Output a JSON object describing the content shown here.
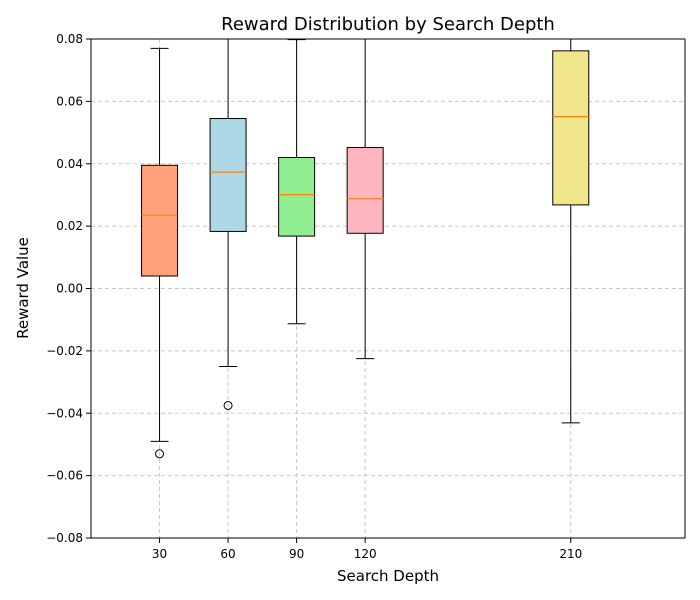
{
  "chart_data": {
    "type": "box",
    "title": "Reward Distribution by Search Depth",
    "xlabel": "Search Depth",
    "ylabel": "Reward Value",
    "x_ticks": [
      30,
      60,
      90,
      120,
      210
    ],
    "xlim": [
      0,
      260
    ],
    "ylim": [
      -0.08,
      0.08
    ],
    "y_ticks": [
      -0.08,
      -0.06,
      -0.04,
      -0.02,
      0.0,
      0.02,
      0.04,
      0.06,
      0.08
    ],
    "y_tick_labels": [
      "−0.08",
      "−0.06",
      "−0.04",
      "−0.02",
      "0.00",
      "0.02",
      "0.04",
      "0.06",
      "0.08"
    ],
    "grid": true,
    "median_color": "#ff7f0e",
    "boxes": [
      {
        "x": 30,
        "whisker_low": -0.049,
        "q1": 0.004,
        "median": 0.0235,
        "q3": 0.0395,
        "whisker_high": 0.077,
        "outliers": [
          -0.053
        ],
        "color": "#ffa07a"
      },
      {
        "x": 60,
        "whisker_low": -0.025,
        "q1": 0.0183,
        "median": 0.0373,
        "q3": 0.0545,
        "whisker_high": 0.081,
        "outliers": [
          -0.0375
        ],
        "color": "#add8e6"
      },
      {
        "x": 90,
        "whisker_low": -0.0113,
        "q1": 0.0168,
        "median": 0.0301,
        "q3": 0.042,
        "whisker_high": 0.0798,
        "outliers": [],
        "color": "#90ee90"
      },
      {
        "x": 120,
        "whisker_low": -0.0225,
        "q1": 0.0177,
        "median": 0.0288,
        "q3": 0.0452,
        "whisker_high": 0.081,
        "outliers": [],
        "color": "#ffb6c1"
      },
      {
        "x": 210,
        "whisker_low": -0.0431,
        "q1": 0.0268,
        "median": 0.0551,
        "q3": 0.0762,
        "whisker_high": 0.081,
        "outliers": [],
        "color": "#f0e68c"
      }
    ]
  }
}
